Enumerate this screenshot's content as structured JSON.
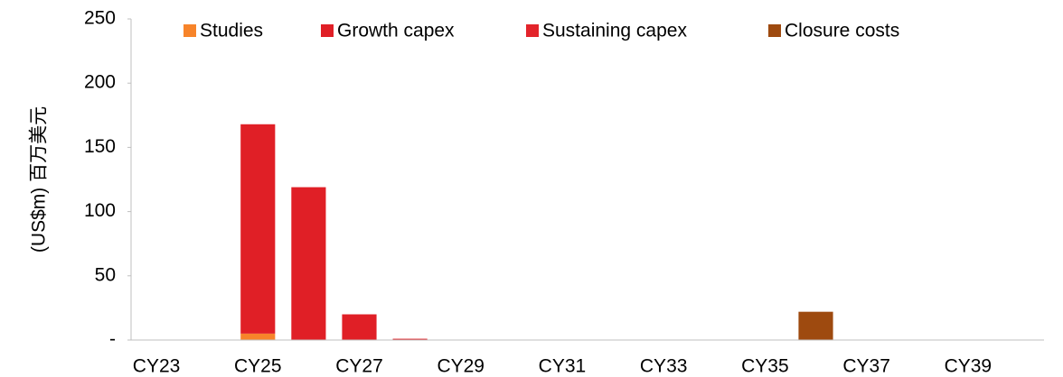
{
  "chart_data": {
    "type": "bar",
    "stacked": true,
    "y_label": "(US$m) 百万美元",
    "categories": [
      "CY23",
      null,
      "CY25",
      null,
      "CY27",
      null,
      "CY29",
      null,
      "CY31",
      null,
      "CY33",
      null,
      "CY35",
      null,
      "CY37",
      null,
      "CY39",
      null
    ],
    "series": [
      {
        "name": "Studies",
        "color": "#f7842a",
        "values": [
          0,
          0,
          5,
          0,
          0,
          0,
          0,
          0,
          0,
          0,
          0,
          0,
          0,
          0,
          0,
          0,
          0,
          0
        ]
      },
      {
        "name": "Growth capex",
        "color": "#e01f26",
        "values": [
          0,
          0,
          163,
          119,
          20,
          0,
          0,
          0,
          0,
          0,
          0,
          0,
          0,
          0,
          0,
          0,
          0,
          0
        ]
      },
      {
        "name": "Sustaining capex",
        "color": "#e3242b",
        "values": [
          0,
          0,
          0,
          0,
          0,
          1,
          0,
          0,
          0,
          0,
          0,
          0,
          0,
          0,
          0,
          0,
          0,
          0
        ]
      },
      {
        "name": "Closure costs",
        "color": "#9e4a0f",
        "values": [
          0,
          0,
          0,
          0,
          0,
          0,
          0,
          0,
          0,
          0,
          0,
          0,
          0,
          22,
          0,
          0,
          0,
          0
        ]
      }
    ],
    "ylim": [
      0,
      250
    ],
    "yticks": [
      {
        "value": 0,
        "label": "-"
      },
      50,
      100,
      150,
      200,
      250
    ],
    "legend": "top"
  }
}
